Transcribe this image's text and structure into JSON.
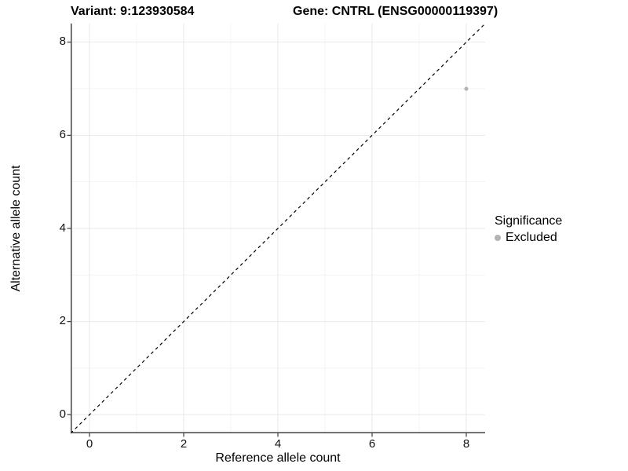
{
  "titles": {
    "variant": "Variant: 9:123930584",
    "gene": "Gene: CNTRL (ENSG00000119397)"
  },
  "colors": {
    "axis": "#404040",
    "grid_major": "#e9e9e9",
    "grid_minor": "#f3f3f3",
    "reference_line": "#000000",
    "point": "#b3b3b3"
  },
  "chart_data": {
    "type": "scatter",
    "title": "Variant: 9:123930584    Gene: CNTRL (ENSG00000119397)",
    "xlabel": "Reference allele count",
    "ylabel": "Alternative allele count",
    "xlim": [
      -0.4,
      8.4
    ],
    "ylim": [
      -0.4,
      8.4
    ],
    "x_ticks": [
      0,
      2,
      4,
      6,
      8
    ],
    "y_ticks": [
      0,
      2,
      4,
      6,
      8
    ],
    "x_minor_ticks": [
      1,
      3,
      5,
      7
    ],
    "y_minor_ticks": [
      1,
      3,
      5,
      7
    ],
    "grid": true,
    "reference_line": {
      "type": "identity",
      "style": "dashed",
      "color": "#000000"
    },
    "series": [
      {
        "name": "Excluded",
        "color": "#b3b3b3",
        "points": [
          {
            "x": 8,
            "y": 7
          }
        ]
      }
    ],
    "legend": {
      "title": "Significance",
      "position": "right",
      "entries": [
        {
          "label": "Excluded",
          "color": "#b3b3b3"
        }
      ]
    }
  }
}
